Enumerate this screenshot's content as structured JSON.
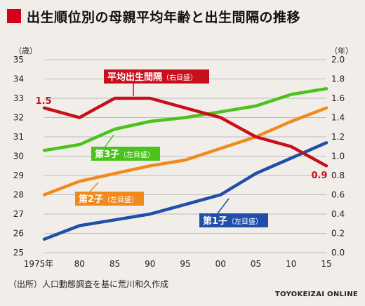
{
  "title": "出生順位別の母親平均年齢と出生間隔の推移",
  "source": "（出所）人口動態調査を基に荒川和久作成",
  "credit": "TOYOKEIZAI ONLINE",
  "colors": {
    "accent": "#d7001a",
    "first": "#1f4fa8",
    "second": "#f08a1c",
    "third": "#4cc21d",
    "interval": "#c8101c",
    "background": "#f1eeea"
  },
  "chart_data": {
    "type": "line",
    "categories": [
      "1975年",
      "80",
      "85",
      "90",
      "95",
      "00",
      "05",
      "10",
      "15"
    ],
    "x": [
      1975,
      1980,
      1985,
      1990,
      1995,
      2000,
      2005,
      2010,
      2015
    ],
    "left_axis": {
      "unit": "（歳）",
      "ylim": [
        25,
        35
      ],
      "ticks": [
        "25",
        "26",
        "27",
        "28",
        "29",
        "30",
        "31",
        "32",
        "33",
        "34",
        "35"
      ]
    },
    "right_axis": {
      "unit": "（年）",
      "ylim": [
        0.0,
        2.0
      ],
      "ticks": [
        "0.0",
        "0.2",
        "0.4",
        "0.6",
        "0.8",
        "1.0",
        "1.2",
        "1.4",
        "1.6",
        "1.8",
        "2.0"
      ]
    },
    "grid": true,
    "series": [
      {
        "name": "第1子（左目盛）",
        "key": "first",
        "axis": "left",
        "values": [
          25.7,
          26.4,
          26.7,
          27.0,
          27.5,
          28.0,
          29.1,
          29.9,
          30.7
        ]
      },
      {
        "name": "第2子（左目盛）",
        "key": "second",
        "axis": "left",
        "values": [
          28.0,
          28.7,
          29.1,
          29.5,
          29.8,
          30.4,
          31.0,
          31.8,
          32.5
        ]
      },
      {
        "name": "第3子（左目盛）",
        "key": "third",
        "axis": "left",
        "values": [
          30.3,
          30.6,
          31.4,
          31.8,
          32.0,
          32.3,
          32.6,
          33.2,
          33.5
        ]
      },
      {
        "name": "平均出生間隔（右目盛）",
        "key": "interval",
        "axis": "right",
        "values": [
          1.5,
          1.4,
          1.6,
          1.6,
          1.5,
          1.4,
          1.2,
          1.1,
          0.9
        ]
      }
    ],
    "labels": {
      "first": {
        "main": "第1子",
        "sub": "（左目盛）"
      },
      "second": {
        "main": "第2子",
        "sub": "（左目盛）"
      },
      "third": {
        "main": "第3子",
        "sub": "（左目盛）"
      },
      "interval": {
        "main": "平均出生間隔",
        "sub": "（右目盛）"
      }
    },
    "annotations": [
      "1.5",
      "0.9"
    ]
  }
}
